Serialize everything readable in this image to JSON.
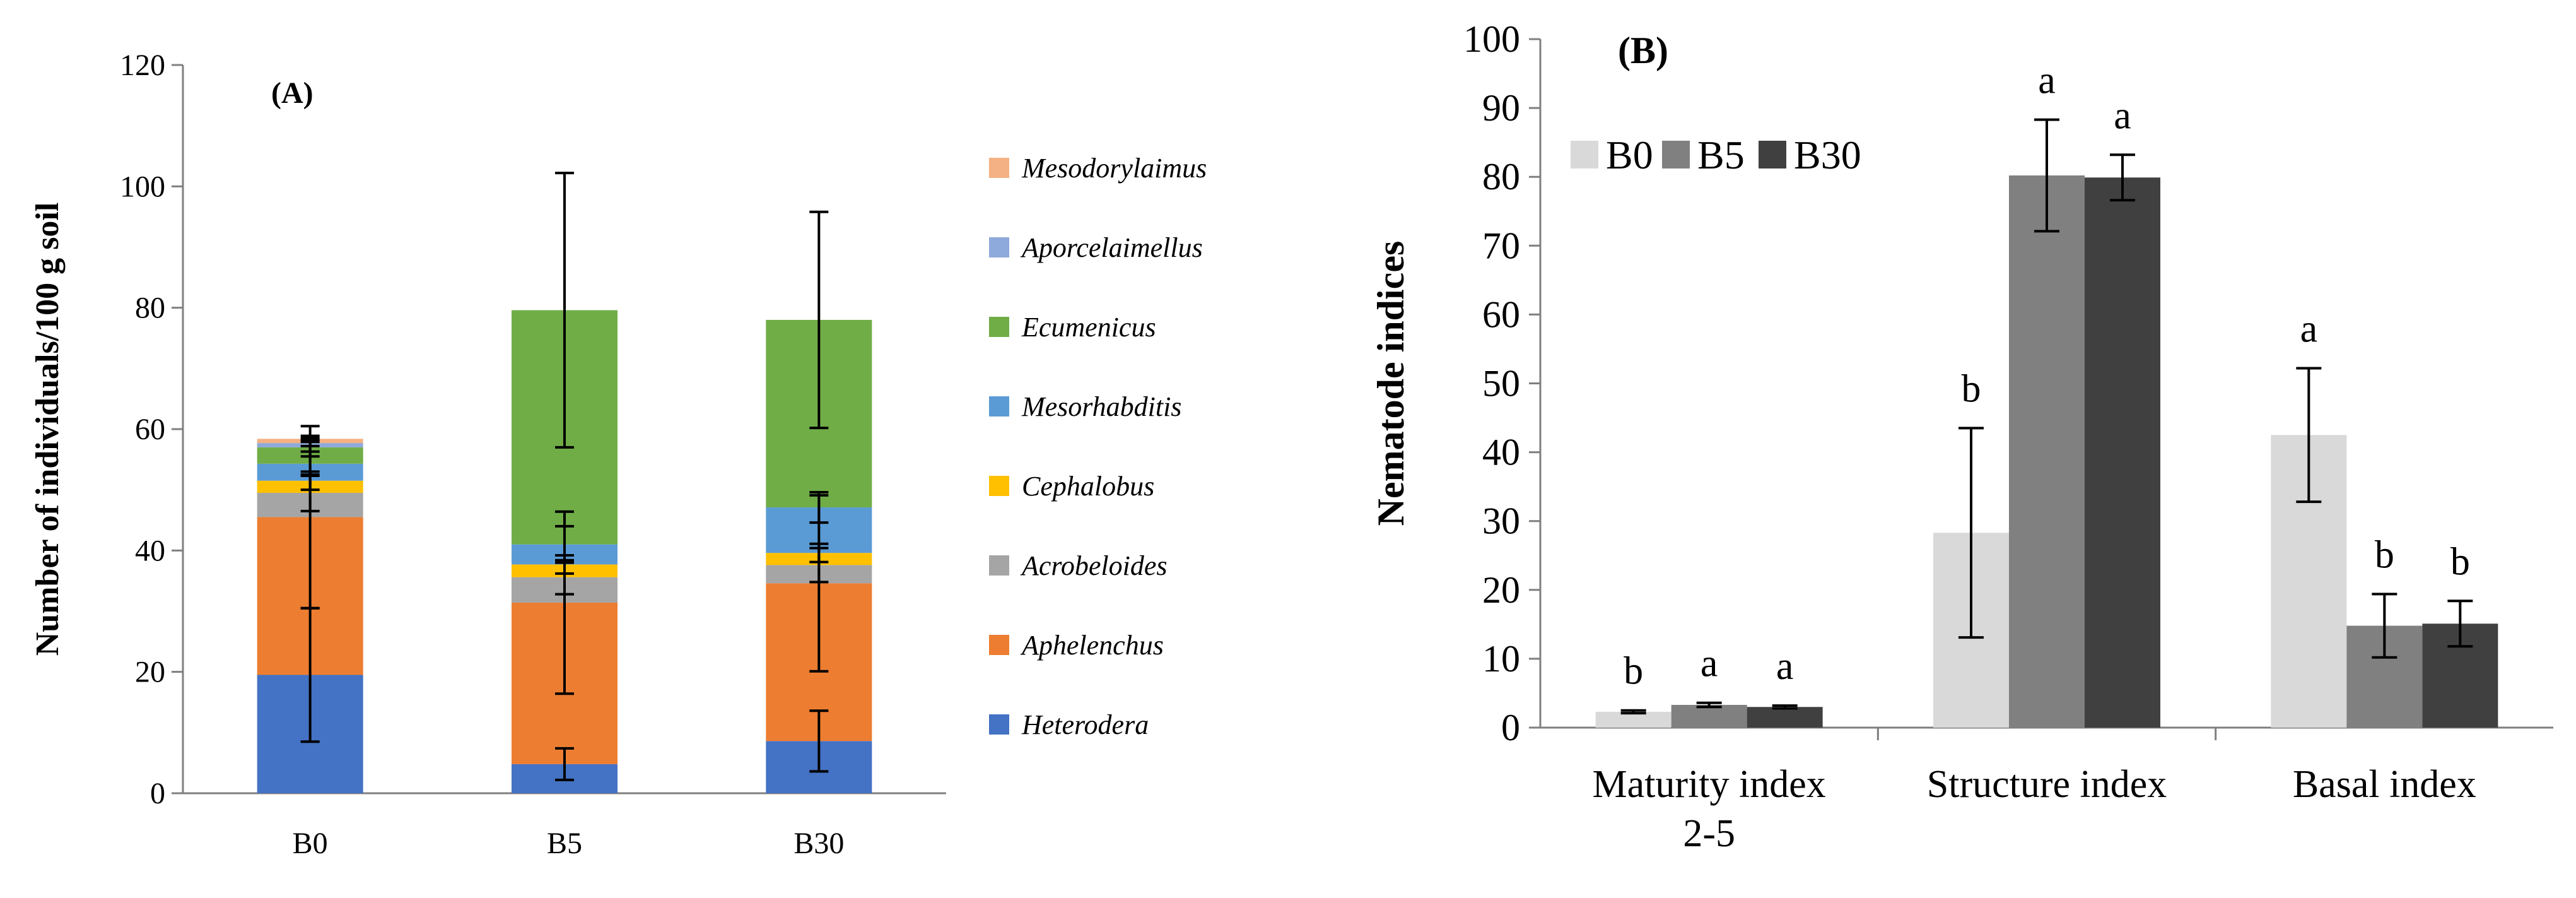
{
  "chart_data": [
    {
      "type": "bar",
      "stacked": true,
      "panel_label": "(A)",
      "title": "",
      "xlabel": "",
      "ylabel": "Number of individuals/100 g soil",
      "ylim": [
        0,
        120
      ],
      "yticks": [
        "0",
        "20",
        "40",
        "60",
        "80",
        "100",
        "120"
      ],
      "categories": [
        "B0",
        "B5",
        "B30"
      ],
      "series": [
        {
          "name": "Heterodera",
          "color": "#4472c4",
          "values": [
            19.5,
            4.8,
            8.6
          ],
          "errors": [
            11,
            2.6,
            5
          ]
        },
        {
          "name": "Aphelenchus",
          "color": "#ed7d31",
          "values": [
            26,
            26.6,
            26
          ],
          "errors": [
            15,
            15,
            14.5
          ]
        },
        {
          "name": "Acrobeloides",
          "color": "#a5a5a5",
          "values": [
            4,
            4.2,
            3
          ],
          "errors": [
            3,
            2.8,
            2.8
          ]
        },
        {
          "name": "Cephalobus",
          "color": "#ffc000",
          "values": [
            2,
            2.1,
            2
          ],
          "errors": [
            1.5,
            1.5,
            1.5
          ]
        },
        {
          "name": "Mesorhabditis",
          "color": "#5b9bd5",
          "values": [
            2.8,
            3.3,
            7.5
          ],
          "errors": [
            2,
            3,
            2.5
          ]
        },
        {
          "name": "Ecumenicus",
          "color": "#70ad47",
          "values": [
            2.7,
            38.6,
            30.9
          ],
          "errors": [
            1.5,
            22.6,
            17.8
          ]
        },
        {
          "name": "Aporcelaimellus",
          "color": "#8ea9db",
          "values": [
            0.7,
            0,
            0
          ],
          "errors": [
            0.5,
            0,
            0
          ]
        },
        {
          "name": "Mesodorylaimus",
          "color": "#f4b183",
          "values": [
            0.7,
            0,
            0
          ],
          "errors": [
            0.5,
            0,
            0
          ]
        }
      ],
      "legend_order": [
        "Mesodorylaimus",
        "Aporcelaimellus",
        "Ecumenicus",
        "Mesorhabditis",
        "Cephalobus",
        "Acrobeloides",
        "Aphelenchus",
        "Heterodera"
      ],
      "legend_position": "right"
    },
    {
      "type": "bar",
      "stacked": false,
      "panel_label": "(B)",
      "title": "",
      "xlabel": "",
      "ylabel": "Nematode indices",
      "ylim": [
        0,
        100
      ],
      "yticks": [
        "0",
        "10",
        "20",
        "30",
        "40",
        "50",
        "60",
        "70",
        "80",
        "90",
        "100"
      ],
      "categories": [
        "Maturity index 2-5",
        "Structure index",
        "Basal index"
      ],
      "category_lines": [
        [
          "Maturity index",
          "2-5"
        ],
        [
          "Structure index"
        ],
        [
          "Basal index"
        ]
      ],
      "series": [
        {
          "name": "B0",
          "color": "#d9d9d9",
          "values": [
            2.3,
            28.3,
            42.5
          ],
          "errors": [
            0.2,
            15.2,
            9.7
          ],
          "letters": [
            "b",
            "b",
            "a"
          ]
        },
        {
          "name": "B5",
          "color": "#808080",
          "values": [
            3.3,
            80.2,
            14.8
          ],
          "errors": [
            0.3,
            8.1,
            4.6
          ],
          "letters": [
            "a",
            "a",
            "b"
          ]
        },
        {
          "name": "B30",
          "color": "#404040",
          "values": [
            3.0,
            79.9,
            15.1
          ],
          "errors": [
            0.2,
            3.3,
            3.3
          ],
          "letters": [
            "a",
            "a",
            "b"
          ]
        }
      ],
      "legend_position": "top-left"
    }
  ]
}
